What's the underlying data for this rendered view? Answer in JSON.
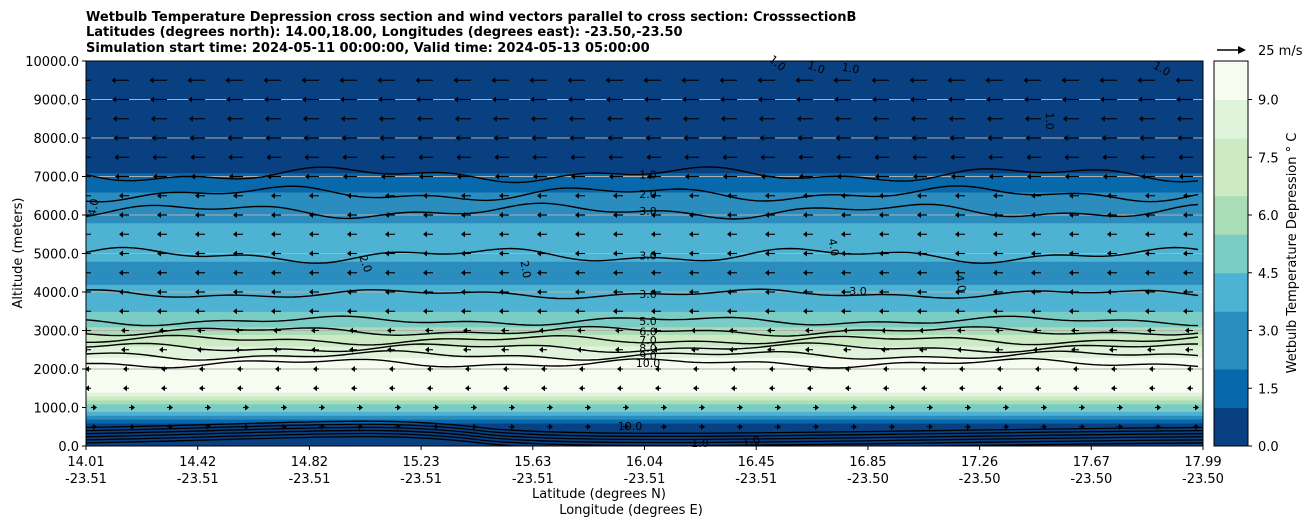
{
  "chart_data": {
    "type": "heatmap",
    "title_lines": [
      "Wetbulb Temperature Depression cross section and wind vectors parallel to cross section: CrosssectionB",
      "Latitudes (degrees north): 14.00,18.00, Longitudes (degrees east): -23.50,-23.50",
      "Simulation start time: 2024-05-11 00:00:00, Valid time: 2024-05-13 05:00:00"
    ],
    "ylabel": "Altitude (meters)",
    "xlabel_lines": [
      "Latitude (degrees N)",
      "Longitude (degrees E)"
    ],
    "ylim": [
      0,
      10000
    ],
    "yticks": [
      "0.0",
      "1000.0",
      "2000.0",
      "3000.0",
      "4000.0",
      "5000.0",
      "6000.0",
      "7000.0",
      "8000.0",
      "9000.0",
      "10000.0"
    ],
    "xlim": [
      14.01,
      17.99
    ],
    "xticks": [
      {
        "lat": "14.01",
        "lon": "-23.51"
      },
      {
        "lat": "14.42",
        "lon": "-23.51"
      },
      {
        "lat": "14.82",
        "lon": "-23.51"
      },
      {
        "lat": "15.23",
        "lon": "-23.51"
      },
      {
        "lat": "15.63",
        "lon": "-23.51"
      },
      {
        "lat": "16.04",
        "lon": "-23.51"
      },
      {
        "lat": "16.45",
        "lon": "-23.51"
      },
      {
        "lat": "16.85",
        "lon": "-23.50"
      },
      {
        "lat": "17.26",
        "lon": "-23.50"
      },
      {
        "lat": "17.67",
        "lon": "-23.50"
      },
      {
        "lat": "17.99",
        "lon": "-23.50"
      }
    ],
    "colorbar": {
      "label": "Wetbulb Temperature Depression ° C",
      "range": [
        0,
        10
      ],
      "ticks": [
        "0.0",
        "1.5",
        "3.0",
        "4.5",
        "6.0",
        "7.5",
        "9.0"
      ],
      "colors_low_to_high": [
        "#084081",
        "#0868ac",
        "#2b8cbe",
        "#4eb3d3",
        "#7bccc4",
        "#a8ddb5",
        "#ccebc5",
        "#e0f3db",
        "#f7fcf0"
      ]
    },
    "wind_key": "25 m/s",
    "depression_profile": [
      {
        "alt": 0,
        "value": 0.5
      },
      {
        "alt": 600,
        "value": 1.0
      },
      {
        "alt": 1500,
        "value": 10.0
      },
      {
        "alt": 2000,
        "value": 10.0
      },
      {
        "alt": 2600,
        "value": 8.0
      },
      {
        "alt": 3000,
        "value": 6.0
      },
      {
        "alt": 3300,
        "value": 5.0
      },
      {
        "alt": 3800,
        "value": 3.5
      },
      {
        "alt": 4500,
        "value": 3.2
      },
      {
        "alt": 5500,
        "value": 3.6
      },
      {
        "alt": 6200,
        "value": 3.0
      },
      {
        "alt": 6700,
        "value": 2.0
      },
      {
        "alt": 7200,
        "value": 1.0
      },
      {
        "alt": 8000,
        "value": 0.6
      },
      {
        "alt": 10000,
        "value": 0.6
      }
    ],
    "contours": [
      {
        "label": "1.0",
        "alt": 7050
      },
      {
        "label": "2.0",
        "alt": 6550
      },
      {
        "label": "3.0",
        "alt": 6100
      },
      {
        "label": "3.0",
        "alt": 4950
      },
      {
        "label": "3.0",
        "alt": 3950
      },
      {
        "label": "5.0",
        "alt": 3250
      },
      {
        "label": "6.0",
        "alt": 2980
      },
      {
        "label": "7.0",
        "alt": 2750
      },
      {
        "label": "8.0",
        "alt": 2550
      },
      {
        "label": "9.0",
        "alt": 2350
      },
      {
        "label": "10.0",
        "alt": 2150
      }
    ],
    "extra_labels": [
      "4.0",
      "2.0",
      "2.0",
      "4.0",
      "4.0",
      "3.0",
      "1.0",
      "1.0",
      "1.0",
      "1.0",
      "1.0",
      "10.0",
      "1.0",
      "1.0"
    ]
  }
}
